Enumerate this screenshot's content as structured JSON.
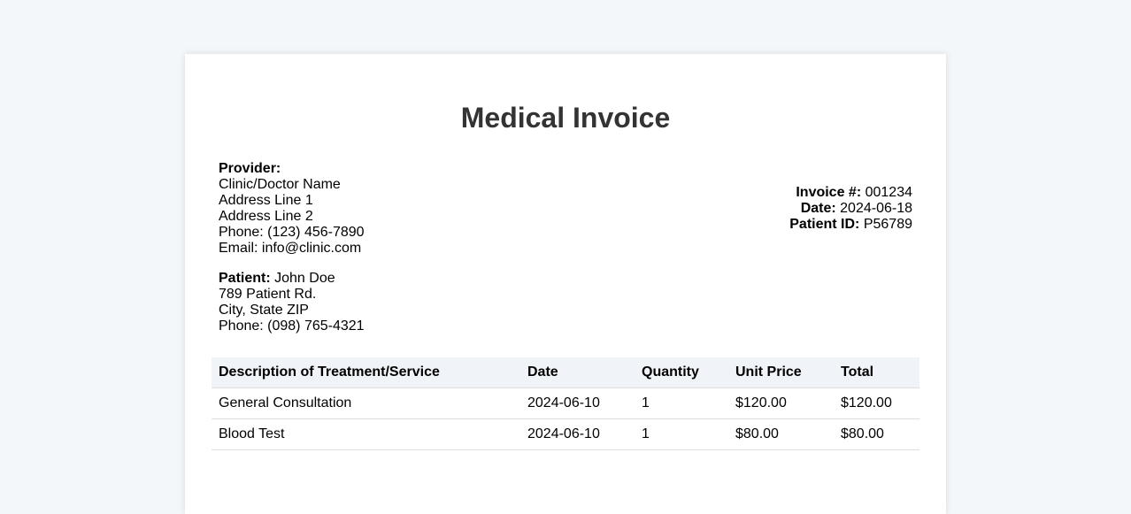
{
  "title": "Medical Invoice",
  "provider": {
    "label": "Provider:",
    "lines": [
      "Clinic/Doctor Name",
      "Address Line 1",
      "Address Line 2",
      "Phone: (123) 456-7890",
      "Email: info@clinic.com"
    ]
  },
  "patient": {
    "label": "Patient:",
    "name": "John Doe",
    "lines": [
      "789 Patient Rd.",
      "City, State ZIP",
      "Phone: (098) 765-4321"
    ]
  },
  "invoice": {
    "number_label": "Invoice #:",
    "number": "001234",
    "date_label": "Date:",
    "date": "2024-06-18",
    "patient_id_label": "Patient ID:",
    "patient_id": "P56789"
  },
  "table": {
    "headers": [
      "Description of Treatment/Service",
      "Date",
      "Quantity",
      "Unit Price",
      "Total"
    ],
    "rows": [
      [
        "General Consultation",
        "2024-06-10",
        "1",
        "$120.00",
        "$120.00"
      ],
      [
        "Blood Test",
        "2024-06-10",
        "1",
        "$80.00",
        "$80.00"
      ]
    ]
  }
}
